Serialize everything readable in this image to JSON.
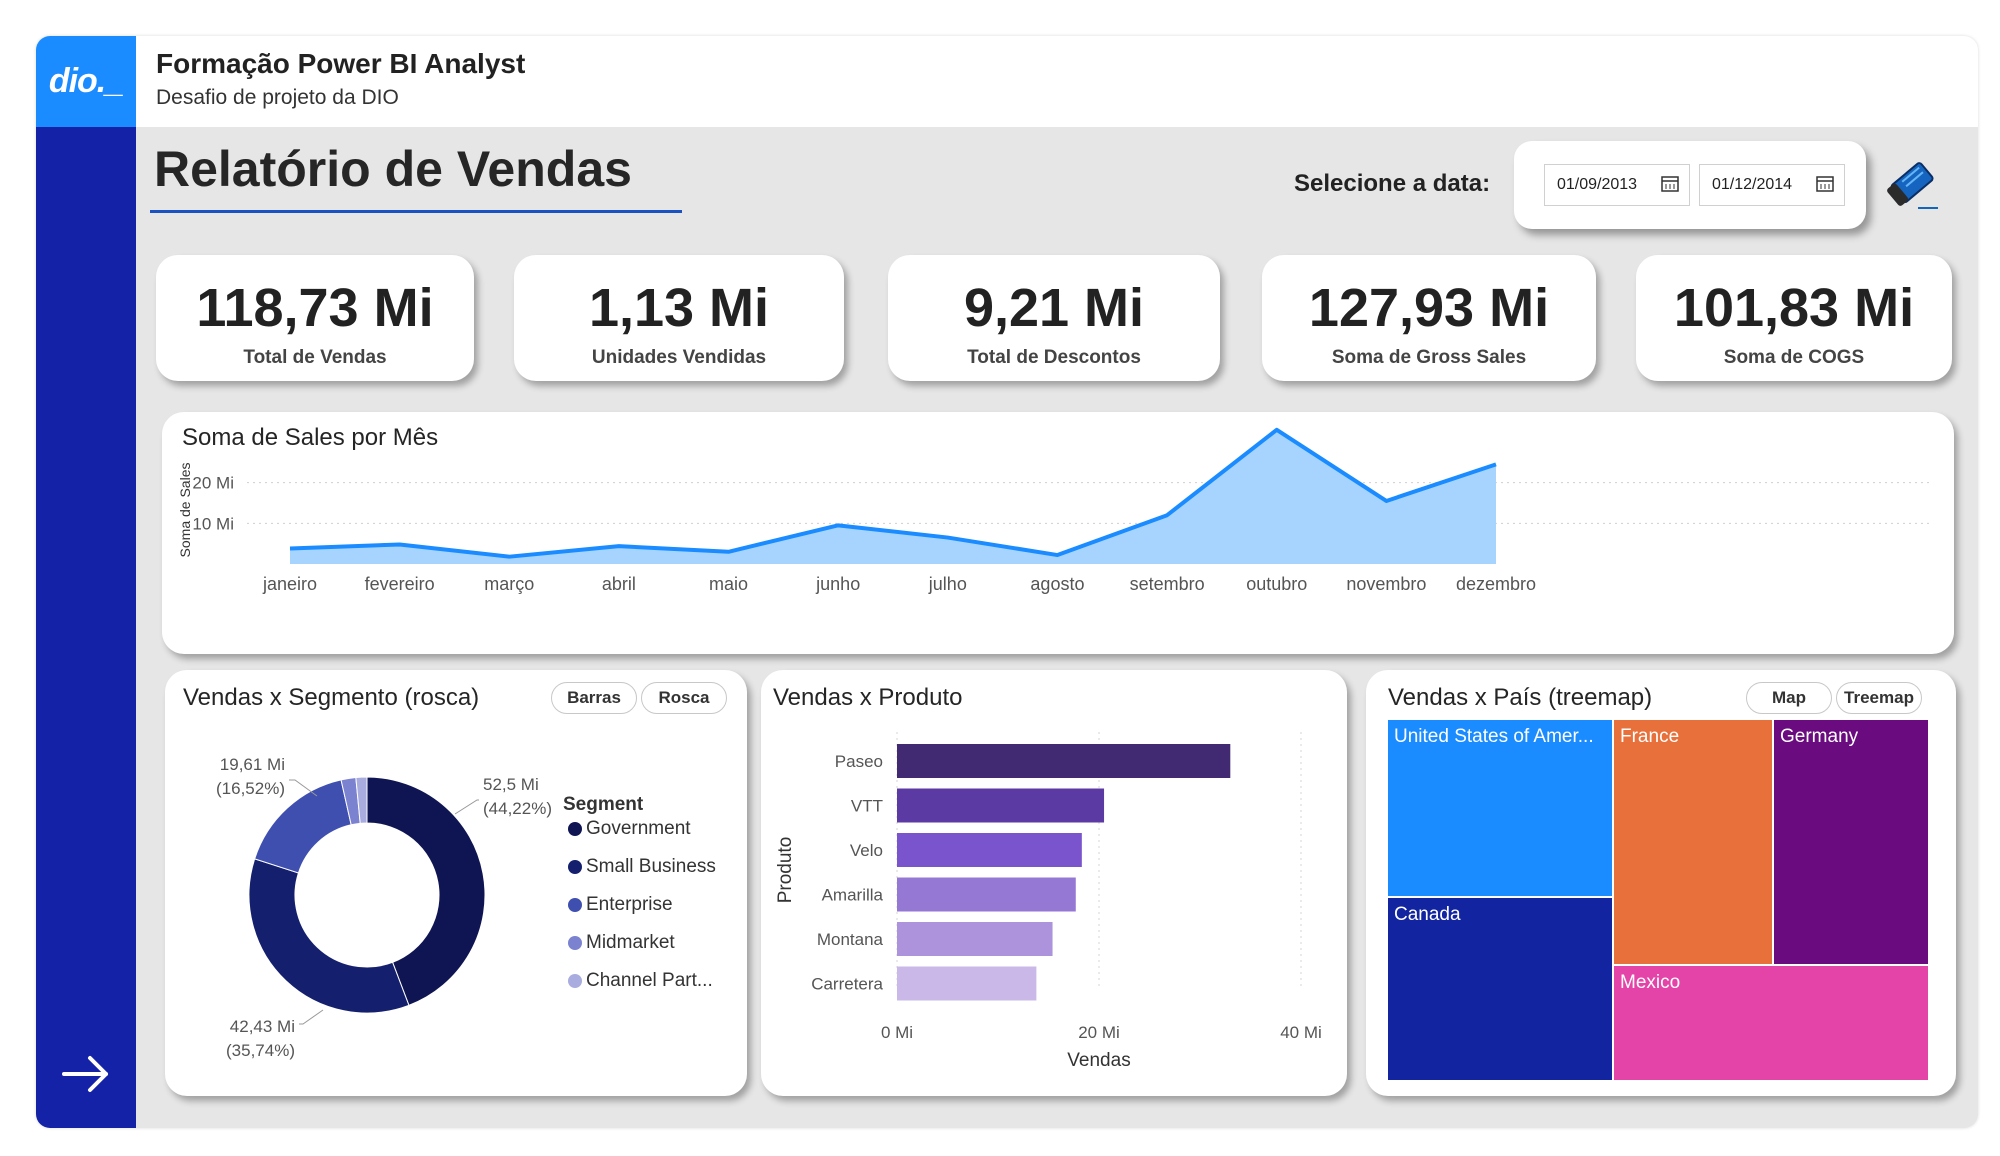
{
  "header": {
    "logo_text": "dio._",
    "title": "Formação Power BI Analyst",
    "subtitle": "Desafio de projeto da DIO"
  },
  "report": {
    "title": "Relatório de Vendas",
    "date_label": "Selecione a data:",
    "start_date": "01/09/2013",
    "end_date": "01/12/2014"
  },
  "kpis": [
    {
      "value": "118,73 Mi",
      "label": "Total de Vendas"
    },
    {
      "value": "1,13 Mi",
      "label": "Unidades Vendidas"
    },
    {
      "value": "9,21 Mi",
      "label": "Total de Descontos"
    },
    {
      "value": "127,93 Mi",
      "label": "Soma de Gross Sales"
    },
    {
      "value": "101,83 Mi",
      "label": "Soma de COGS"
    }
  ],
  "colors": {
    "accent": "#1a8cff",
    "sidebar": "#1322a6",
    "line": "#1a8cff",
    "area": "#a6d4ff"
  },
  "chart_data": [
    {
      "type": "area",
      "title": "Soma de Sales por Mês",
      "xlabel": "",
      "ylabel": "Soma de Sales",
      "y_ticks": [
        "10 Mi",
        "20 Mi"
      ],
      "ylim": [
        0,
        30
      ],
      "categories": [
        "janeiro",
        "fevereiro",
        "março",
        "abril",
        "maio",
        "junho",
        "julho",
        "agosto",
        "setembro",
        "outubro",
        "novembro",
        "dezembro"
      ],
      "values": [
        3.8,
        4.8,
        1.8,
        4.4,
        3.0,
        9.5,
        6.5,
        2.2,
        12.0,
        33.0,
        15.5,
        24.5
      ]
    },
    {
      "type": "pie",
      "title": "Vendas x Segmento (rosca)",
      "buttons": [
        "Barras",
        "Rosca"
      ],
      "legend_title": "Segment",
      "categories": [
        "Government",
        "Small Business",
        "Enterprise",
        "Midmarket",
        "Channel Part..."
      ],
      "values": [
        52.5,
        42.43,
        19.61,
        2.4,
        1.79
      ],
      "colors": [
        "#0f1552",
        "#14206e",
        "#3f4fb0",
        "#7b82cf",
        "#a9acdf"
      ],
      "data_labels": [
        {
          "value": "52,5 Mi",
          "pct": "(44,22%)"
        },
        {
          "value": "42,43 Mi",
          "pct": "(35,74%)"
        },
        {
          "value": "19,61 Mi",
          "pct": "(16,52%)"
        }
      ]
    },
    {
      "type": "bar",
      "title": "Vendas x Produto",
      "xlabel": "Vendas",
      "ylabel": "Produto",
      "x_ticks": [
        "0 Mi",
        "20 Mi",
        "40 Mi"
      ],
      "xlim": [
        0,
        40
      ],
      "categories": [
        "Paseo",
        "VTT",
        "Velo",
        "Amarilla",
        "Montana",
        "Carretera"
      ],
      "values": [
        33.0,
        20.5,
        18.3,
        17.7,
        15.4,
        13.8
      ],
      "colors": [
        "#412a72",
        "#5b3aa3",
        "#7a54cc",
        "#9577d4",
        "#ac93dc",
        "#c9b8e8"
      ]
    },
    {
      "type": "heatmap",
      "title": "Vendas x País (treemap)",
      "buttons": [
        "Map",
        "Treemap"
      ],
      "categories": [
        "United States of Amer...",
        "Canada",
        "France",
        "Germany",
        "Mexico"
      ],
      "colors": [
        "#1a8cff",
        "#1224a0",
        "#e8703a",
        "#6b0b80",
        "#e444a8"
      ]
    }
  ]
}
